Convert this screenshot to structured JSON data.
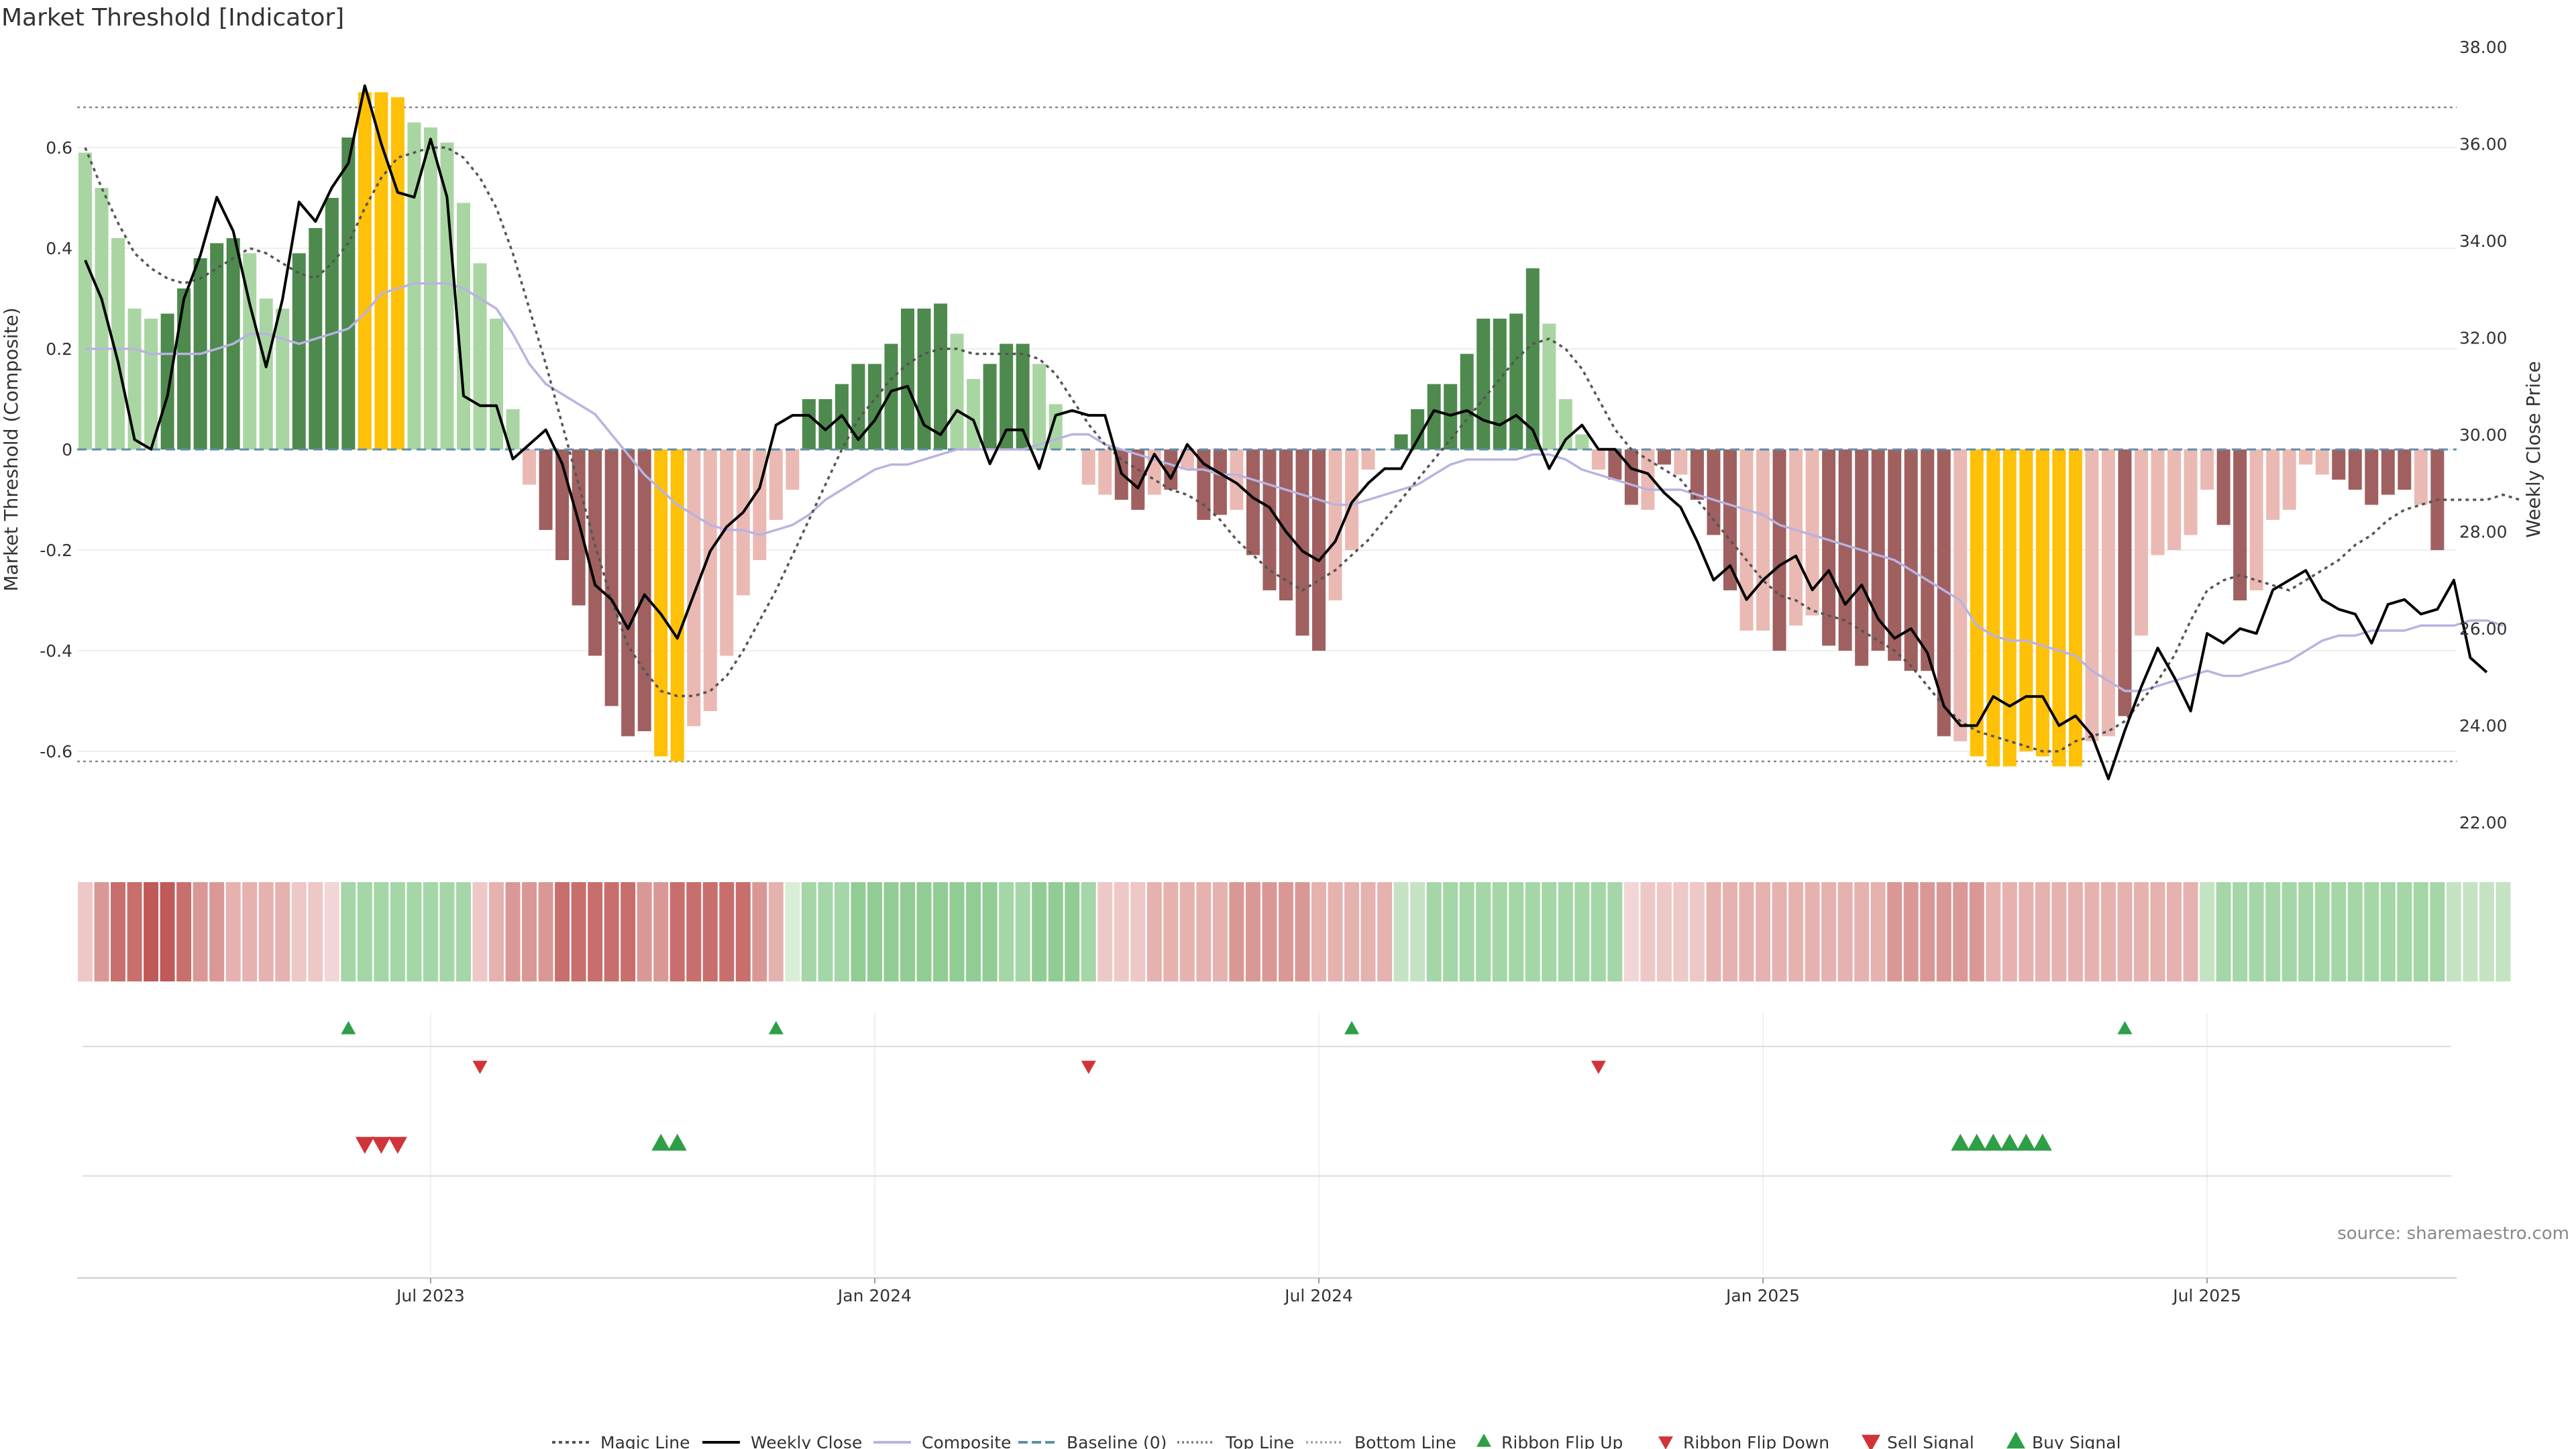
{
  "title": "Market Threshold [Indicator]",
  "source_note": "source: sharemaestro.com",
  "colors": {
    "strong_green": "#4e8a4e",
    "light_green": "#a9d5a2",
    "strong_red": "#a06060",
    "light_red": "#ebb9b3",
    "extreme": "#ffc107",
    "composite": "#b8b3e0",
    "price": "#000000",
    "magic": "#555555",
    "baseline": "#5f8fa8",
    "flip_up": "#2e9e47",
    "flip_down": "#d13438",
    "sell": "#d13438",
    "buy": "#2e9e47"
  },
  "chart_data": {
    "type": "bar",
    "title": "Market Threshold [Indicator]",
    "ylabel": "Market Threshold (Composite)",
    "y2label": "Weekly Close Price",
    "ylim": [
      -0.78,
      0.8
    ],
    "y2lim": [
      21.6,
      38.0
    ],
    "yticks": [
      "0.6",
      "0.4",
      "0.2",
      "0",
      "-0.2",
      "-0.4",
      "-0.6"
    ],
    "yticks_values": [
      0.6,
      0.4,
      0.2,
      0,
      -0.2,
      -0.4,
      -0.6
    ],
    "y2ticks": [
      "38.00",
      "36.00",
      "34.00",
      "32.00",
      "30.00",
      "28.00",
      "26.00",
      "24.00",
      "22.00"
    ],
    "y2ticks_values": [
      38,
      36,
      34,
      32,
      30,
      28,
      26,
      24,
      22
    ],
    "xticks": [
      "Jul 2023",
      "Jan 2024",
      "Jul 2024",
      "Jan 2025",
      "Jul 2025"
    ],
    "xticks_index": [
      21,
      48,
      75,
      102,
      129
    ],
    "top_line": 0.68,
    "bottom_line": -0.62,
    "grid": true,
    "legend_position": "bottom-center",
    "legend": [
      "Magic Line",
      "Weekly Close",
      "Composite",
      "Baseline (0)",
      "Top Line",
      "Bottom Line",
      "Ribbon Flip Up",
      "Ribbon Flip Down",
      "Sell Signal",
      "Buy Signal"
    ],
    "bar_values": [
      0.59,
      0.52,
      0.42,
      0.28,
      0.26,
      0.27,
      0.32,
      0.38,
      0.41,
      0.42,
      0.39,
      0.3,
      0.28,
      0.39,
      0.44,
      0.5,
      0.62,
      0.71,
      0.71,
      0.7,
      0.65,
      0.64,
      0.61,
      0.49,
      0.37,
      0.26,
      0.08,
      -0.07,
      -0.16,
      -0.22,
      -0.31,
      -0.41,
      -0.51,
      -0.57,
      -0.56,
      -0.61,
      -0.62,
      -0.55,
      -0.52,
      -0.41,
      -0.29,
      -0.22,
      -0.14,
      -0.08,
      0.1,
      0.1,
      0.13,
      0.17,
      0.17,
      0.21,
      0.28,
      0.28,
      0.29,
      0.23,
      0.14,
      0.17,
      0.21,
      0.21,
      0.17,
      0.09,
      0.0,
      -0.07,
      -0.09,
      -0.1,
      -0.12,
      -0.09,
      -0.08,
      -0.04,
      -0.14,
      -0.13,
      -0.12,
      -0.21,
      -0.28,
      -0.3,
      -0.37,
      -0.4,
      -0.3,
      -0.2,
      -0.04,
      0.0,
      0.03,
      0.08,
      0.13,
      0.13,
      0.19,
      0.26,
      0.26,
      0.27,
      0.36,
      0.25,
      0.1,
      0.03,
      -0.04,
      -0.06,
      -0.11,
      -0.12,
      -0.03,
      -0.05,
      -0.1,
      -0.17,
      -0.28,
      -0.36,
      -0.36,
      -0.4,
      -0.35,
      -0.33,
      -0.39,
      -0.4,
      -0.43,
      -0.4,
      -0.42,
      -0.44,
      -0.44,
      -0.57,
      -0.58,
      -0.61,
      -0.63,
      -0.63,
      -0.6,
      -0.61,
      -0.63,
      -0.63,
      -0.58,
      -0.57,
      -0.53,
      -0.37,
      -0.21,
      -0.2,
      -0.17,
      -0.08,
      -0.15,
      -0.3,
      -0.28,
      -0.14,
      -0.12,
      -0.03,
      -0.05,
      -0.06,
      -0.08,
      -0.11,
      -0.09,
      -0.08,
      -0.11,
      -0.2
    ],
    "bar_class": [
      "LG",
      "LG",
      "LG",
      "LG",
      "LG",
      "SG",
      "SG",
      "SG",
      "SG",
      "SG",
      "LG",
      "LG",
      "LG",
      "SG",
      "SG",
      "SG",
      "SG",
      "Y",
      "Y",
      "Y",
      "LG",
      "LG",
      "LG",
      "LG",
      "LG",
      "LG",
      "LG",
      "LR",
      "SR",
      "SR",
      "SR",
      "SR",
      "SR",
      "SR",
      "SR",
      "Y",
      "Y",
      "LR",
      "LR",
      "LR",
      "LR",
      "LR",
      "LR",
      "LR",
      "SG",
      "SG",
      "SG",
      "SG",
      "SG",
      "SG",
      "SG",
      "SG",
      "SG",
      "LG",
      "LG",
      "SG",
      "SG",
      "SG",
      "LG",
      "LG",
      "LG",
      "LR",
      "LR",
      "SR",
      "SR",
      "LR",
      "SR",
      "LR",
      "SR",
      "SR",
      "LR",
      "SR",
      "SR",
      "SR",
      "SR",
      "SR",
      "LR",
      "LR",
      "LR",
      "LG",
      "SG",
      "SG",
      "SG",
      "SG",
      "SG",
      "SG",
      "SG",
      "SG",
      "SG",
      "LG",
      "LG",
      "LG",
      "LR",
      "SR",
      "SR",
      "LR",
      "SR",
      "LR",
      "SR",
      "SR",
      "SR",
      "LR",
      "LR",
      "SR",
      "LR",
      "LR",
      "SR",
      "SR",
      "SR",
      "SR",
      "SR",
      "SR",
      "SR",
      "SR",
      "LR",
      "Y",
      "Y",
      "Y",
      "Y",
      "Y",
      "Y",
      "Y",
      "LR",
      "LR",
      "SR",
      "LR",
      "LR",
      "LR",
      "LR",
      "LR",
      "SR",
      "SR",
      "LR",
      "LR",
      "LR",
      "LR",
      "LR",
      "SR",
      "SR",
      "SR",
      "SR",
      "SR",
      "LR",
      "SR"
    ],
    "price": [
      33.6,
      32.8,
      31.5,
      29.9,
      29.7,
      30.8,
      32.8,
      33.7,
      34.9,
      34.2,
      32.7,
      31.4,
      32.8,
      34.8,
      34.4,
      35.1,
      35.6,
      37.2,
      36.0,
      35.0,
      34.9,
      36.1,
      34.9,
      30.8,
      30.6,
      30.6,
      29.5,
      29.8,
      30.1,
      29.4,
      28.2,
      26.9,
      26.6,
      26.0,
      26.7,
      26.3,
      25.8,
      26.7,
      27.6,
      28.1,
      28.4,
      28.9,
      30.2,
      30.4,
      30.4,
      30.1,
      30.4,
      29.9,
      30.3,
      30.9,
      31.0,
      30.2,
      30.0,
      30.5,
      30.3,
      29.4,
      30.1,
      30.1,
      29.3,
      30.4,
      30.5,
      30.4,
      30.4,
      29.2,
      28.9,
      29.6,
      29.1,
      29.8,
      29.4,
      29.2,
      29.0,
      28.7,
      28.5,
      28.0,
      27.6,
      27.4,
      27.8,
      28.6,
      29.0,
      29.3,
      29.3,
      29.9,
      30.5,
      30.4,
      30.5,
      30.3,
      30.2,
      30.4,
      30.1,
      29.3,
      29.9,
      30.2,
      29.7,
      29.7,
      29.3,
      29.2,
      28.8,
      28.5,
      27.8,
      27.0,
      27.3,
      26.6,
      27.0,
      27.3,
      27.5,
      26.8,
      27.2,
      26.5,
      26.9,
      26.2,
      25.8,
      26.0,
      25.5,
      24.4,
      24.0,
      24.0,
      24.6,
      24.4,
      24.6,
      24.6,
      24.0,
      24.2,
      23.8,
      22.9,
      23.9,
      24.8,
      25.6,
      25.0,
      24.3,
      25.9,
      25.7,
      26.0,
      25.9,
      26.8,
      27.0,
      27.2,
      26.6,
      26.4,
      26.3,
      25.7,
      26.5,
      26.6,
      26.3,
      26.4,
      27.0,
      25.4,
      25.1
    ],
    "composite": [
      0.2,
      0.2,
      0.2,
      0.2,
      0.19,
      0.19,
      0.19,
      0.19,
      0.2,
      0.21,
      0.23,
      0.23,
      0.22,
      0.21,
      0.22,
      0.23,
      0.24,
      0.27,
      0.31,
      0.32,
      0.33,
      0.33,
      0.33,
      0.32,
      0.3,
      0.28,
      0.23,
      0.17,
      0.13,
      0.11,
      0.09,
      0.07,
      0.03,
      -0.01,
      -0.05,
      -0.08,
      -0.11,
      -0.13,
      -0.15,
      -0.16,
      -0.16,
      -0.17,
      -0.16,
      -0.15,
      -0.13,
      -0.1,
      -0.08,
      -0.06,
      -0.04,
      -0.03,
      -0.03,
      -0.02,
      -0.01,
      0.0,
      0.0,
      0.0,
      0.0,
      0.0,
      0.01,
      0.02,
      0.03,
      0.03,
      0.01,
      0.0,
      -0.01,
      -0.02,
      -0.03,
      -0.04,
      -0.04,
      -0.05,
      -0.05,
      -0.06,
      -0.07,
      -0.08,
      -0.09,
      -0.1,
      -0.11,
      -0.11,
      -0.1,
      -0.09,
      -0.08,
      -0.07,
      -0.05,
      -0.03,
      -0.02,
      -0.02,
      -0.02,
      -0.02,
      -0.01,
      -0.01,
      -0.02,
      -0.04,
      -0.05,
      -0.06,
      -0.07,
      -0.08,
      -0.08,
      -0.08,
      -0.09,
      -0.1,
      -0.11,
      -0.12,
      -0.13,
      -0.15,
      -0.16,
      -0.17,
      -0.18,
      -0.19,
      -0.2,
      -0.21,
      -0.22,
      -0.24,
      -0.26,
      -0.28,
      -0.3,
      -0.35,
      -0.37,
      -0.38,
      -0.38,
      -0.39,
      -0.4,
      -0.41,
      -0.44,
      -0.46,
      -0.48,
      -0.48,
      -0.47,
      -0.46,
      -0.45,
      -0.44,
      -0.45,
      -0.45,
      -0.44,
      -0.43,
      -0.42,
      -0.4,
      -0.38,
      -0.37,
      -0.37,
      -0.36,
      -0.36,
      -0.36,
      -0.35,
      -0.35,
      -0.35,
      -0.34,
      -0.34,
      -0.35
    ],
    "magic_line": [
      0.6,
      0.52,
      0.45,
      0.39,
      0.36,
      0.34,
      0.33,
      0.34,
      0.36,
      0.38,
      0.4,
      0.39,
      0.37,
      0.35,
      0.34,
      0.37,
      0.41,
      0.48,
      0.54,
      0.58,
      0.59,
      0.6,
      0.6,
      0.58,
      0.54,
      0.48,
      0.39,
      0.28,
      0.17,
      0.05,
      -0.07,
      -0.19,
      -0.3,
      -0.39,
      -0.44,
      -0.48,
      -0.49,
      -0.49,
      -0.48,
      -0.45,
      -0.4,
      -0.34,
      -0.28,
      -0.21,
      -0.14,
      -0.07,
      0.0,
      0.06,
      0.1,
      0.14,
      0.17,
      0.19,
      0.2,
      0.2,
      0.19,
      0.19,
      0.19,
      0.19,
      0.18,
      0.15,
      0.1,
      0.05,
      0.01,
      -0.02,
      -0.04,
      -0.06,
      -0.08,
      -0.09,
      -0.11,
      -0.14,
      -0.18,
      -0.21,
      -0.24,
      -0.26,
      -0.28,
      -0.26,
      -0.24,
      -0.21,
      -0.18,
      -0.14,
      -0.1,
      -0.06,
      -0.02,
      0.02,
      0.06,
      0.1,
      0.14,
      0.18,
      0.21,
      0.22,
      0.2,
      0.16,
      0.1,
      0.04,
      0.0,
      -0.02,
      -0.04,
      -0.06,
      -0.1,
      -0.14,
      -0.18,
      -0.22,
      -0.26,
      -0.29,
      -0.3,
      -0.32,
      -0.33,
      -0.34,
      -0.36,
      -0.38,
      -0.4,
      -0.43,
      -0.47,
      -0.51,
      -0.54,
      -0.56,
      -0.57,
      -0.58,
      -0.59,
      -0.6,
      -0.6,
      -0.58,
      -0.57,
      -0.56,
      -0.54,
      -0.5,
      -0.46,
      -0.41,
      -0.34,
      -0.28,
      -0.26,
      -0.25,
      -0.26,
      -0.27,
      -0.28,
      -0.26,
      -0.24,
      -0.22,
      -0.19,
      -0.17,
      -0.14,
      -0.12,
      -0.11,
      -0.1,
      -0.1,
      -0.1,
      -0.1,
      -0.09,
      -0.1
    ],
    "ribbon_shades": [
      "r1",
      "r3",
      "r4",
      "r4",
      "r5",
      "r5",
      "r4",
      "r3",
      "r3",
      "r2",
      "r2",
      "r2",
      "r2",
      "r1",
      "r1",
      "r0",
      "g2",
      "g2",
      "g2",
      "g2",
      "g2",
      "g2",
      "g2",
      "g2",
      "r1",
      "r2",
      "r3",
      "r3",
      "r3",
      "r4",
      "r4",
      "r4",
      "r4",
      "r4",
      "r3",
      "r3",
      "r4",
      "r4",
      "r4",
      "r4",
      "r4",
      "r3",
      "r2",
      "g0",
      "g2",
      "g2",
      "g2",
      "g3",
      "g3",
      "g3",
      "g3",
      "g3",
      "g3",
      "g3",
      "g3",
      "g3",
      "g2",
      "g2",
      "g3",
      "g3",
      "g3",
      "g2",
      "r1",
      "r1",
      "r1",
      "r2",
      "r2",
      "r2",
      "r2",
      "r2",
      "r3",
      "r3",
      "r3",
      "r3",
      "r3",
      "r2",
      "r2",
      "r2",
      "r2",
      "r2",
      "g1",
      "g1",
      "g2",
      "g2",
      "g2",
      "g2",
      "g2",
      "g2",
      "g2",
      "g2",
      "g2",
      "g2",
      "g2",
      "g2",
      "r0",
      "r1",
      "r1",
      "r1",
      "r1",
      "r2",
      "r2",
      "r2",
      "r2",
      "r2",
      "r2",
      "r2",
      "r2",
      "r2",
      "r2",
      "r2",
      "r3",
      "r3",
      "r3",
      "r3",
      "r3",
      "r3",
      "r2",
      "r2",
      "r2",
      "r2",
      "r2",
      "r2",
      "r2",
      "r2",
      "r2",
      "r2",
      "r2",
      "r2",
      "r2",
      "g1",
      "g2",
      "g2",
      "g2",
      "g2",
      "g2",
      "g2",
      "g2",
      "g2",
      "g2",
      "g2",
      "g2",
      "g2",
      "g2",
      "g2",
      "g1",
      "g1",
      "g1",
      "g1"
    ],
    "ribbon_flip_up": [
      16,
      42,
      77,
      124
    ],
    "ribbon_flip_down": [
      24,
      61,
      92
    ],
    "sell_signals": [
      17,
      18,
      19
    ],
    "buy_signals": [
      35,
      36,
      114,
      115,
      116,
      117,
      118,
      119
    ]
  }
}
